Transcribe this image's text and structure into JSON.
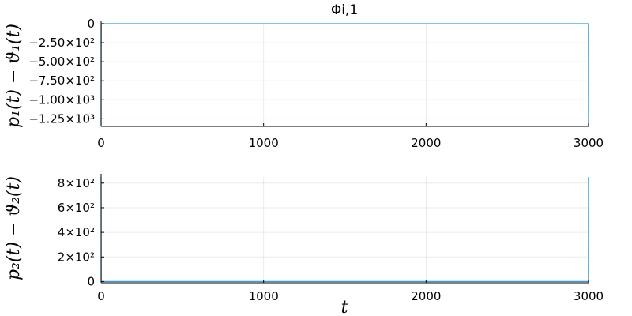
{
  "chart_data": [
    {
      "type": "line",
      "title": "Φi,1",
      "ylabel": "p₁(t) − ϑ₁(t)",
      "xlabel": "",
      "xlim": [
        0,
        3000
      ],
      "ylim": [
        -1350,
        0
      ],
      "xticks": [
        0,
        1000,
        2000,
        3000
      ],
      "xtick_labels": [
        "0",
        "1000",
        "2000",
        "3000"
      ],
      "yticks": [
        0,
        -250,
        -500,
        -750,
        -1000,
        -1250
      ],
      "ytick_labels": [
        "0",
        "−2.50×10²",
        "−5.00×10²",
        "−7.50×10²",
        "−1.00×10³",
        "−1.25×10³"
      ],
      "grid": true,
      "legend": "none",
      "color": "#2e9fe8",
      "series": [
        {
          "x": [
            0,
            1,
            500,
            1000,
            1500,
            2000,
            2500,
            2999,
            2999.5,
            3000
          ],
          "y": [
            -1350,
            0,
            0,
            0,
            0,
            0,
            0,
            0,
            -1350,
            0
          ]
        }
      ]
    },
    {
      "type": "line",
      "title": "",
      "ylabel": "p₂(t) − ϑ₂(t)",
      "xlabel": "t",
      "xlim": [
        0,
        3000
      ],
      "ylim": [
        -10,
        850
      ],
      "xticks": [
        0,
        1000,
        2000,
        3000
      ],
      "xtick_labels": [
        "0",
        "1000",
        "2000",
        "3000"
      ],
      "yticks": [
        0,
        200,
        400,
        600,
        800
      ],
      "ytick_labels": [
        "0",
        "2×10²",
        "4×10²",
        "6×10²",
        "8×10²"
      ],
      "grid": true,
      "legend": "none",
      "color": "#2e9fe8",
      "series": [
        {
          "x": [
            0,
            1,
            500,
            1000,
            1500,
            2000,
            2500,
            2999,
            2999.5,
            3000
          ],
          "y": [
            850,
            0,
            0,
            0,
            0,
            0,
            0,
            0,
            850,
            0
          ]
        }
      ]
    }
  ]
}
